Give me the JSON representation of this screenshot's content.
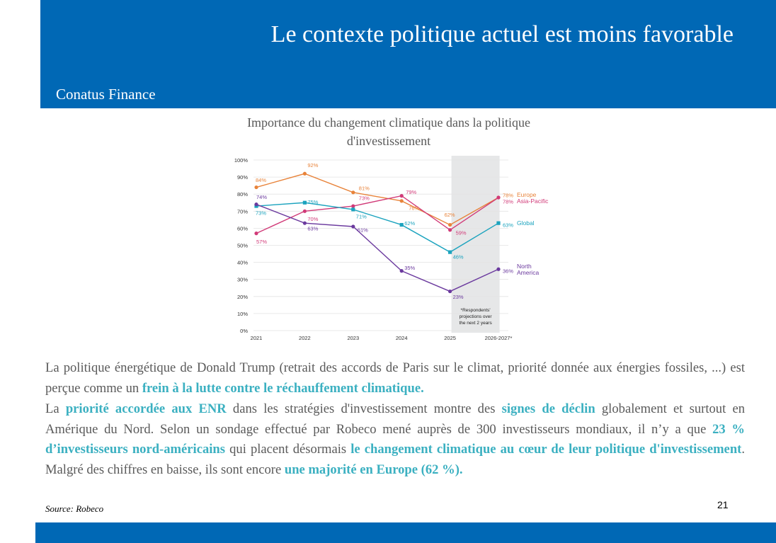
{
  "slide": {
    "title": "Le contexte politique actuel est moins favorable",
    "company": "Conatus Finance",
    "page_number": "21",
    "source": "Source: Robeco",
    "colors": {
      "header": "#0068b5",
      "highlight": "#3bb0c1",
      "text": "#5a5a5a"
    }
  },
  "text": {
    "p1_a": "La politique énergétique de Donald Trump (retrait des accords de Paris sur le climat, priorité donnée aux énergies fossiles, ...) est perçue comme un ",
    "p1_b": "frein à la lutte contre le réchauffement climatique.",
    "p2_a": "La ",
    "p2_b": "priorité accordée aux ENR",
    "p2_c": " dans les stratégies d'investissement montre des ",
    "p2_d": "signes de déclin",
    "p2_e": " globalement et surtout en Amérique du Nord. Selon un sondage effectué par Robeco mené auprès de 300 investisseurs mondiaux, il n’y a que ",
    "p2_f": "23 % d’investisseurs nord-américains",
    "p2_g": " qui placent désormais ",
    "p2_h": "le changement climatique au cœur de leur politique d'investissement",
    "p2_i": ". Malgré des chiffres en baisse, ils sont encore ",
    "p2_j": "une majorité en Europe (62 %)."
  },
  "chart_data": {
    "type": "line",
    "title": "Importance du changement climatique dans la politique d'investissement",
    "x": [
      "2021",
      "2022",
      "2023",
      "2024",
      "2025",
      "2026-2027*"
    ],
    "ylim": [
      0,
      100
    ],
    "yticks": [
      "0%",
      "10%",
      "20%",
      "30%",
      "40%",
      "50%",
      "60%",
      "70%",
      "80%",
      "90%",
      "100%"
    ],
    "shaded_region": {
      "from": "2025",
      "to": "2026-2027*",
      "note": [
        "*Respondents'",
        "projections over",
        "the next 2 years"
      ]
    },
    "grid": true,
    "series": [
      {
        "name": "Europe",
        "color": "#e8833a",
        "values": [
          84,
          92,
          81,
          76,
          62,
          78
        ],
        "labels": [
          "84%",
          "92%",
          "81%",
          "76%",
          "62%",
          "78%"
        ]
      },
      {
        "name": "Asia-Pacific",
        "color": "#d13a78",
        "values": [
          57,
          70,
          73,
          79,
          59,
          78
        ],
        "labels": [
          "57%",
          "70%",
          "73%",
          "79%",
          "59%",
          "78%"
        ]
      },
      {
        "name": "Global",
        "color": "#1ba3be",
        "values": [
          73,
          75,
          71,
          62,
          46,
          63
        ],
        "labels": [
          "73%",
          "75%",
          "71%",
          "62%",
          "46%",
          "63%"
        ]
      },
      {
        "name": "North America",
        "name_lines": [
          "North",
          "America"
        ],
        "color": "#6b3a9e",
        "values": [
          74,
          63,
          61,
          35,
          23,
          36
        ],
        "labels": [
          "74%",
          "63%",
          "61%",
          "35%",
          "23%",
          "36%"
        ]
      }
    ]
  }
}
